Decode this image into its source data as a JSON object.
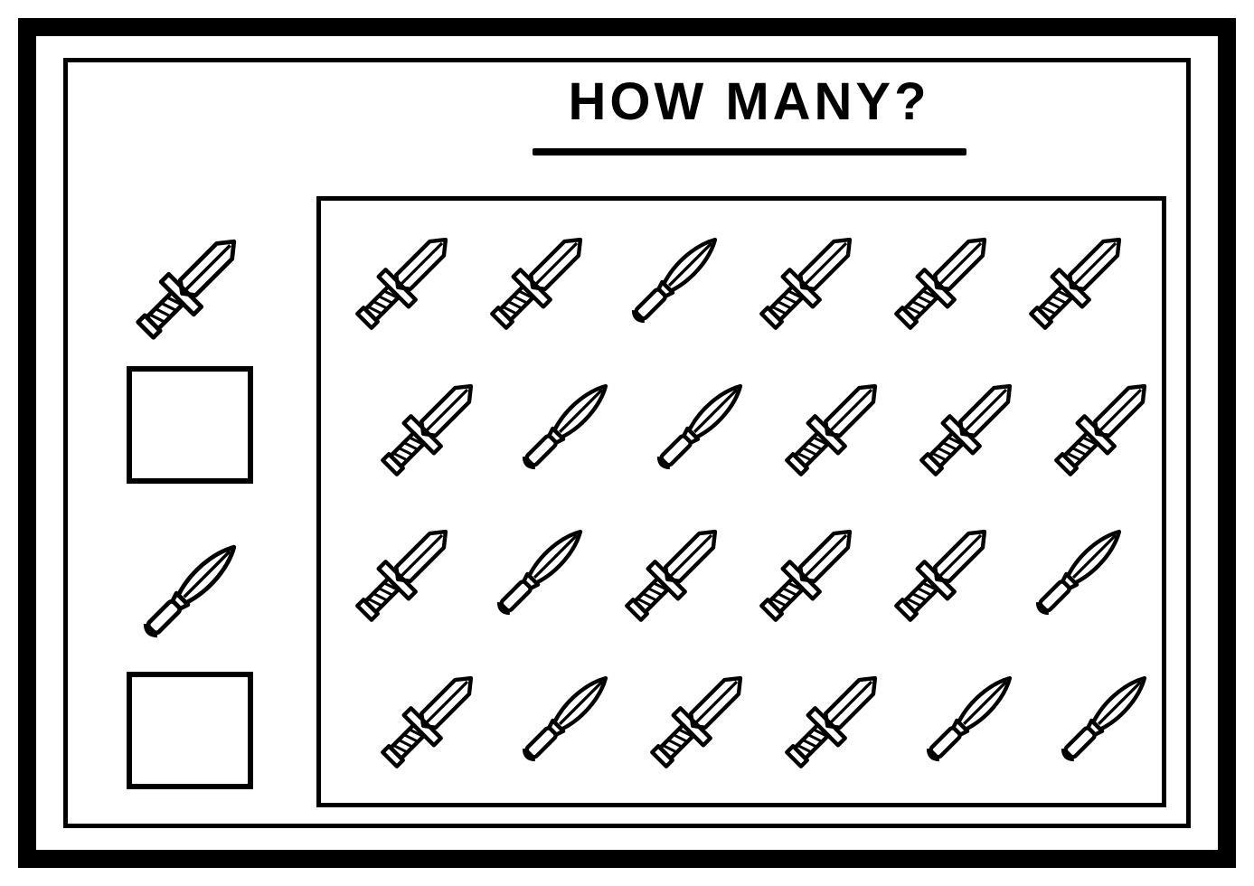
{
  "title": "HOW MANY?",
  "colors": {
    "stroke": "#000000",
    "background": "#ffffff",
    "frame": "#000000"
  },
  "dagger_types": {
    "A": "striped-handle-crossguard",
    "B": "plain-leaf-blade"
  },
  "legend": [
    {
      "type": "A"
    },
    {
      "type": "B"
    }
  ],
  "grid": {
    "rows": 4,
    "cols": 6,
    "row_offsets": [
      false,
      true,
      false,
      true
    ],
    "cells": [
      [
        "A",
        "A",
        "B",
        "A",
        "A",
        "A"
      ],
      [
        "A",
        "B",
        "B",
        "A",
        "A",
        "A"
      ],
      [
        "A",
        "B",
        "A",
        "A",
        "A",
        "B"
      ],
      [
        "A",
        "B",
        "A",
        "A",
        "B",
        "B"
      ]
    ]
  },
  "style": {
    "title_fontsize": 58,
    "title_letterspacing": 4,
    "outer_border_width": 20,
    "inner_border_width": 5,
    "answer_box_border": 6,
    "dagger_stroke_width": 3.2,
    "dagger_rotation_deg": 45
  }
}
